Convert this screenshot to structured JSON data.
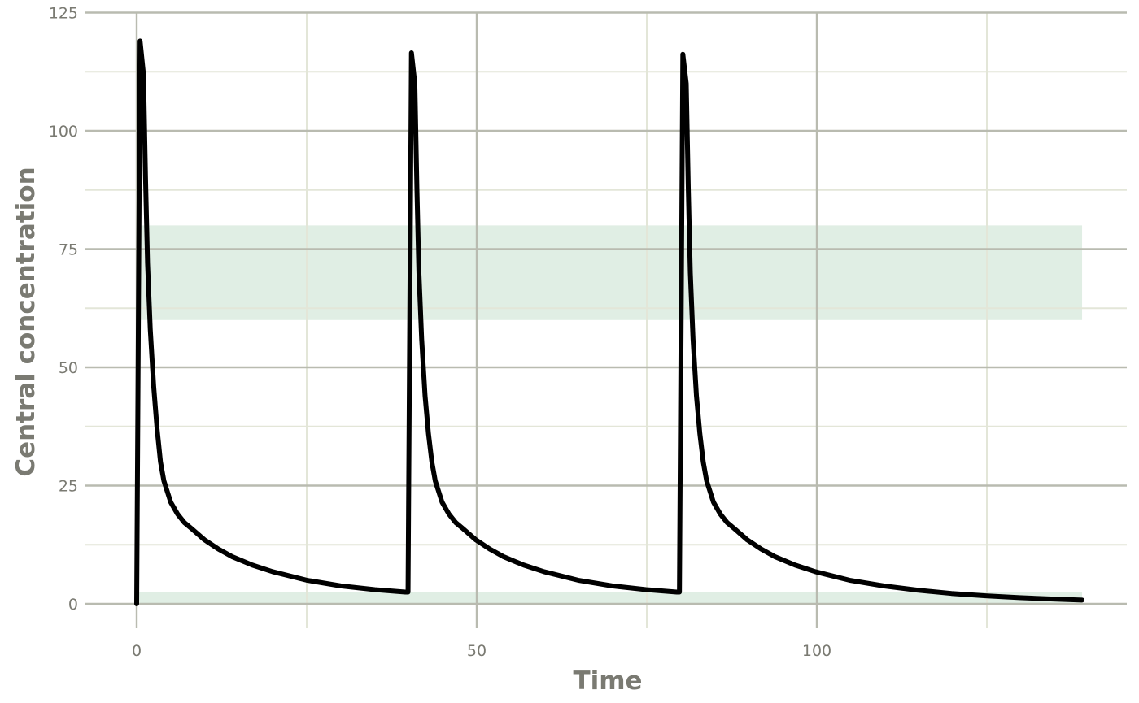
{
  "chart_data": {
    "type": "line",
    "title": "",
    "xlabel": "Time",
    "ylabel": "Central concentration",
    "xlim": [
      -6,
      146
    ],
    "ylim": [
      -5,
      125
    ],
    "x_ticks": [
      0,
      50,
      100
    ],
    "x_tick_labels": [
      "0",
      "50",
      "100"
    ],
    "x_minor_ticks": [
      25,
      75,
      125
    ],
    "y_ticks": [
      0,
      25,
      50,
      75,
      100,
      125
    ],
    "y_tick_labels": [
      "0",
      "25",
      "50",
      "75",
      "100",
      "125"
    ],
    "y_minor_ticks": [
      12.5,
      37.5,
      62.5,
      87.5,
      112.5
    ],
    "grid": true,
    "legend": "none",
    "bands": [
      {
        "ymin": 60,
        "ymax": 80,
        "xmin": 0,
        "xmax": 139
      },
      {
        "ymin": 0,
        "ymax": 2.5,
        "xmin": 0,
        "xmax": 139
      }
    ],
    "series": [
      {
        "x": [
          0,
          0.5,
          1,
          1.3,
          1.6,
          2,
          2.5,
          3,
          3.5,
          4,
          5,
          6,
          7,
          8,
          10,
          12,
          14,
          17,
          20,
          25,
          30,
          35,
          39.5,
          39.9,
          40.4,
          40.9,
          41.2,
          41.5,
          41.9,
          42.4,
          42.9,
          43.4,
          43.9,
          44.9,
          45.9,
          46.9,
          47.9,
          49.9,
          51.9,
          53.9,
          56.9,
          59.9,
          64.9,
          69.9,
          74.9,
          79.4,
          79.8,
          80.3,
          80.8,
          81.1,
          81.4,
          81.8,
          82.3,
          82.8,
          83.3,
          83.8,
          84.8,
          85.8,
          86.8,
          87.8,
          89.8,
          91.8,
          93.8,
          96.8,
          99.8,
          104.8,
          109.8,
          114.8,
          119.8,
          124.8,
          129.8,
          134.8,
          139
        ],
        "y": [
          0,
          119,
          112,
          90,
          72,
          58,
          46,
          37,
          30,
          26,
          21.5,
          19,
          17.2,
          16,
          13.5,
          11.6,
          10,
          8.2,
          6.8,
          5,
          3.8,
          3,
          2.5,
          2.5,
          116.5,
          110,
          88,
          70,
          56,
          44,
          36,
          30,
          26,
          21.5,
          19,
          17.2,
          16,
          13.5,
          11.6,
          10,
          8.2,
          6.8,
          5,
          3.8,
          3,
          2.5,
          2.5,
          116.2,
          110,
          88,
          70,
          56,
          44,
          36,
          30,
          26,
          21.5,
          19,
          17.2,
          16,
          13.5,
          11.6,
          10,
          8.2,
          6.8,
          5,
          3.8,
          2.9,
          2.2,
          1.7,
          1.3,
          1.0,
          0.8
        ]
      }
    ]
  }
}
